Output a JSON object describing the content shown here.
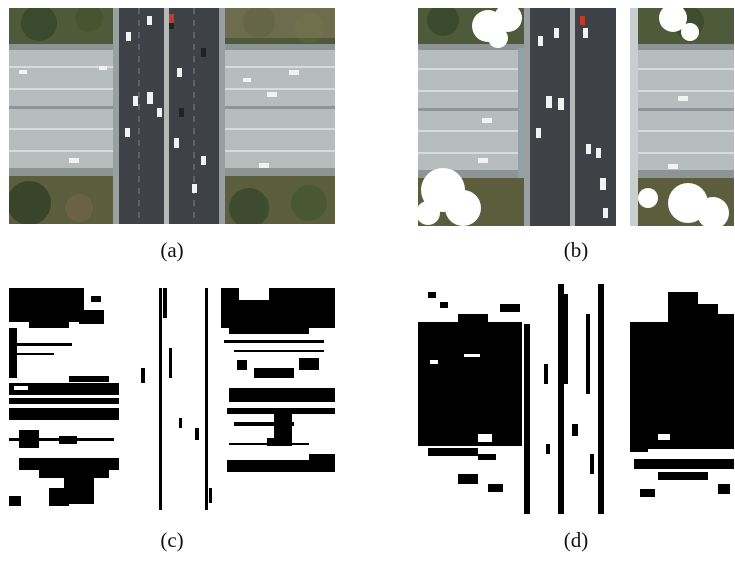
{
  "figure": {
    "panels": [
      {
        "id": "a",
        "caption": "(a)",
        "content": "aerial-overpass-original"
      },
      {
        "id": "b",
        "caption": "(b)",
        "content": "aerial-overpass-augmented"
      },
      {
        "id": "c",
        "caption": "(c)",
        "content": "binary-mask-noisy"
      },
      {
        "id": "d",
        "caption": "(d)",
        "content": "binary-mask-clean"
      }
    ]
  }
}
